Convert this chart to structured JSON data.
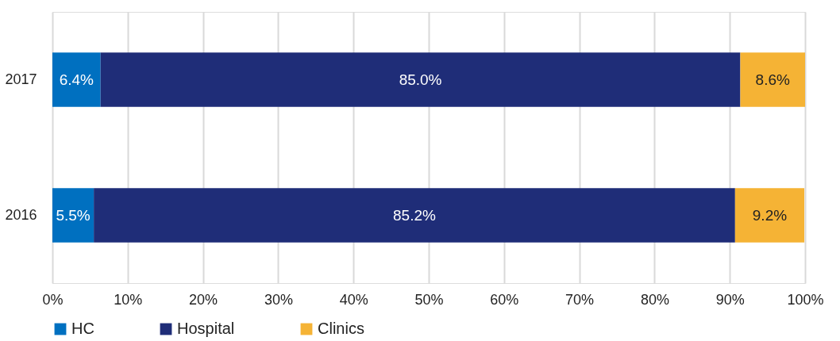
{
  "chart_data": {
    "type": "bar",
    "orientation": "horizontal",
    "stacked": true,
    "categories": [
      "2017",
      "2016"
    ],
    "series": [
      {
        "name": "HC",
        "color": "#0070c0",
        "values": [
          6.4,
          5.5
        ],
        "value_labels": [
          "6.4%",
          "5.5%"
        ]
      },
      {
        "name": "Hospital",
        "color": "#1f2d78",
        "values": [
          85.0,
          85.2
        ],
        "value_labels": [
          "85.0%",
          "85.2%"
        ]
      },
      {
        "name": "Clinics",
        "color": "#f5b335",
        "values": [
          8.6,
          9.2
        ],
        "value_labels": [
          "8.6%",
          "9.2%"
        ]
      }
    ],
    "xlim": [
      0,
      100
    ],
    "xticks": [
      {
        "value": 0,
        "label": "0%"
      },
      {
        "value": 10,
        "label": "10%"
      },
      {
        "value": 20,
        "label": "20%"
      },
      {
        "value": 30,
        "label": "30%"
      },
      {
        "value": 40,
        "label": "40%"
      },
      {
        "value": 50,
        "label": "50%"
      },
      {
        "value": 60,
        "label": "60%"
      },
      {
        "value": 70,
        "label": "70%"
      },
      {
        "value": 80,
        "label": "80%"
      },
      {
        "value": 90,
        "label": "90%"
      },
      {
        "value": 100,
        "label": "100%"
      }
    ],
    "grid": "x",
    "legend": "bottom"
  }
}
